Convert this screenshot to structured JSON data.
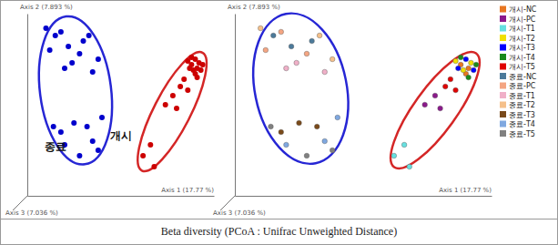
{
  "caption": "Beta diversity (PCoA : Unifrac Unweighted Distance)",
  "chart_data": [
    {
      "type": "scatter",
      "x_label": "Axis 1 (17.77 %)",
      "y_label": "Axis 2 (7.893 %)",
      "z_label": "Axis 3 (7.036 %)",
      "xlim": [
        0,
        100
      ],
      "ylim": [
        0,
        100
      ],
      "tick_labels": false,
      "grid": false,
      "series": [
        {
          "name": "종료",
          "color": "#0000cc",
          "x": [
            15,
            22,
            30,
            12,
            18,
            28,
            24,
            35,
            20,
            10,
            33,
            38,
            25,
            18,
            32,
            20,
            35,
            40,
            28,
            38,
            14
          ],
          "values": [
            88,
            82,
            85,
            80,
            90,
            78,
            73,
            68,
            70,
            92,
            88,
            75,
            40,
            35,
            38,
            28,
            30,
            43,
            22,
            25,
            38
          ]
        },
        {
          "name": "개시",
          "color": "#cc0000",
          "x": [
            88,
            91,
            90,
            78,
            74,
            80,
            66,
            62,
            68,
            86,
            92,
            89,
            90,
            93,
            87,
            88,
            94,
            91,
            82,
            86,
            84
          ],
          "values": [
            72,
            70,
            67,
            55,
            50,
            48,
            28,
            22,
            16,
            74,
            73,
            69,
            75,
            69,
            70,
            76,
            72,
            65,
            60,
            58,
            64
          ]
        }
      ]
    },
    {
      "type": "scatter",
      "x_label": "Axis 1 (17.77 %)",
      "y_label": "Axis 2 (7.893 %)",
      "z_label": "Axis 3 (7.036 %)",
      "xlim": [
        0,
        100
      ],
      "ylim": [
        0,
        100
      ],
      "tick_labels": false,
      "grid": false,
      "legend": "right",
      "series": [
        {
          "name": "개시-NC",
          "color": "#e87722",
          "x": [
            88,
            91,
            90
          ],
          "values": [
            72,
            70,
            67
          ]
        },
        {
          "name": "개시-PC",
          "color": "#8b1a8b",
          "x": [
            78,
            74,
            80
          ],
          "values": [
            55,
            50,
            48
          ]
        },
        {
          "name": "개시-T1",
          "color": "#66e0e0",
          "x": [
            66,
            62,
            68
          ],
          "values": [
            28,
            22,
            16
          ]
        },
        {
          "name": "개시-T2",
          "color": "#f0e000",
          "x": [
            86,
            92,
            89
          ],
          "values": [
            74,
            73,
            69
          ]
        },
        {
          "name": "개시-T3",
          "color": "#0000ff",
          "x": [
            90,
            93,
            87
          ],
          "values": [
            75,
            69,
            70
          ]
        },
        {
          "name": "개시-T4",
          "color": "#1a8a1a",
          "x": [
            88,
            94,
            91
          ],
          "values": [
            76,
            72,
            65
          ]
        },
        {
          "name": "개시-T5",
          "color": "#e00000",
          "x": [
            82,
            86,
            84
          ],
          "values": [
            60,
            58,
            64
          ]
        },
        {
          "name": "종료-NC",
          "color": "#4c7a9a",
          "x": [
            15,
            22,
            30
          ],
          "values": [
            88,
            82,
            85
          ]
        },
        {
          "name": "종료-PC",
          "color": "#f4a582",
          "x": [
            12,
            18,
            28
          ],
          "values": [
            80,
            90,
            78
          ]
        },
        {
          "name": "종료-T1",
          "color": "#f0b0c8",
          "x": [
            24,
            35,
            20
          ],
          "values": [
            73,
            68,
            70
          ]
        },
        {
          "name": "종료-T2",
          "color": "#f5c08a",
          "x": [
            10,
            33,
            38
          ],
          "values": [
            92,
            88,
            75
          ]
        },
        {
          "name": "종료-T3",
          "color": "#7a4a1a",
          "x": [
            25,
            18,
            32
          ],
          "values": [
            40,
            35,
            38
          ]
        },
        {
          "name": "종료-T4",
          "color": "#7fa8e0",
          "x": [
            20,
            35,
            40
          ],
          "values": [
            28,
            30,
            43
          ]
        },
        {
          "name": "종료-T5",
          "color": "#808080",
          "x": [
            28,
            38,
            14
          ],
          "values": [
            22,
            25,
            38
          ]
        }
      ]
    }
  ]
}
